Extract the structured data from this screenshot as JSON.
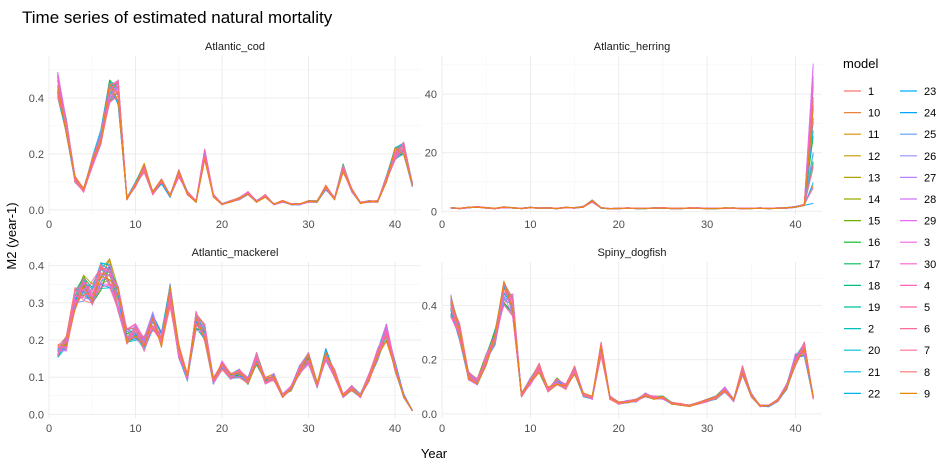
{
  "chart_data": {
    "type": "line",
    "title": "Time series of estimated natural mortality",
    "xlabel": "Year",
    "ylabel": "M2 (year-1)",
    "legend_title": "model",
    "legend_position": "right",
    "grid": true,
    "models": [
      "1",
      "10",
      "11",
      "12",
      "13",
      "14",
      "15",
      "16",
      "17",
      "18",
      "19",
      "2",
      "20",
      "21",
      "22",
      "23",
      "24",
      "25",
      "26",
      "27",
      "28",
      "29",
      "3",
      "30",
      "4",
      "5",
      "6",
      "7",
      "8",
      "9"
    ],
    "model_colors": [
      "#F8766D",
      "#EC8239",
      "#DB8E00",
      "#C79800",
      "#AFA100",
      "#93AA00",
      "#6BB100",
      "#00B81F",
      "#00BC59",
      "#00BF7D",
      "#00C19C",
      "#00C1B7",
      "#00BFCF",
      "#00BBE3",
      "#00B4F0",
      "#00ACFC",
      "#00A5FF",
      "#619CFF",
      "#9590FF",
      "#B983FF",
      "#D376FF",
      "#E76BF3",
      "#F564E3",
      "#FE61CF",
      "#FF62BC",
      "#FF65A9",
      "#FF6C95",
      "#FF7096",
      "#F8766D",
      "#E58700"
    ],
    "panels": [
      {
        "name": "Atlantic_cod",
        "xlim": [
          0,
          43
        ],
        "ylim": [
          -0.015,
          0.55
        ],
        "xticks": [
          0,
          10,
          20,
          30,
          40
        ],
        "xtick_labels": [
          "0",
          "10",
          "20",
          "30",
          "40"
        ],
        "yticks": [
          0,
          0.2,
          0.4
        ],
        "ytick_labels": [
          "0.0",
          "0.2",
          "0.4"
        ],
        "years": [
          1,
          2,
          3,
          4,
          5,
          6,
          7,
          8,
          9,
          10,
          11,
          12,
          13,
          14,
          15,
          16,
          17,
          18,
          19,
          20,
          21,
          22,
          23,
          24,
          25,
          26,
          27,
          28,
          29,
          30,
          31,
          32,
          33,
          34,
          35,
          36,
          37,
          38,
          39,
          40,
          41,
          42
        ],
        "base": [
          0.45,
          0.3,
          0.11,
          0.07,
          0.17,
          0.26,
          0.42,
          0.42,
          0.04,
          0.09,
          0.15,
          0.06,
          0.1,
          0.05,
          0.13,
          0.06,
          0.03,
          0.2,
          0.05,
          0.02,
          0.03,
          0.04,
          0.06,
          0.03,
          0.05,
          0.02,
          0.03,
          0.02,
          0.02,
          0.03,
          0.03,
          0.08,
          0.04,
          0.15,
          0.07,
          0.025,
          0.03,
          0.03,
          0.11,
          0.2,
          0.22,
          0.09
        ]
      },
      {
        "name": "Atlantic_herring",
        "xlim": [
          0,
          43
        ],
        "ylim": [
          -0.9,
          53
        ],
        "xticks": [
          0,
          10,
          20,
          30,
          40
        ],
        "xtick_labels": [
          "0",
          "10",
          "20",
          "30",
          "40"
        ],
        "yticks": [
          0,
          20,
          40
        ],
        "ytick_labels": [
          "0",
          "20",
          "40"
        ],
        "years": [
          1,
          2,
          3,
          4,
          5,
          6,
          7,
          8,
          9,
          10,
          11,
          12,
          13,
          14,
          15,
          16,
          17,
          18,
          19,
          20,
          21,
          22,
          23,
          24,
          25,
          26,
          27,
          28,
          29,
          30,
          31,
          32,
          33,
          34,
          35,
          36,
          37,
          38,
          39,
          40,
          41,
          42
        ],
        "base": [
          1.2,
          1.0,
          1.3,
          1.5,
          1.2,
          1.0,
          1.4,
          1.2,
          1.0,
          1.3,
          1.1,
          1.2,
          1.0,
          1.3,
          1.2,
          1.6,
          3.5,
          1.2,
          0.9,
          1.0,
          1.1,
          1.0,
          1.0,
          1.1,
          1.2,
          1.0,
          1.0,
          1.1,
          1.1,
          1.0,
          1.0,
          1.1,
          1.1,
          1.0,
          1.0,
          1.1,
          1.0,
          1.1,
          1.2,
          1.5,
          2.2,
          4.0
        ]
      },
      {
        "name": "Atlantic_mackerel",
        "xlim": [
          0,
          43
        ],
        "ylim": [
          -0.01,
          0.41
        ],
        "xticks": [
          0,
          10,
          20,
          30,
          40
        ],
        "xtick_labels": [
          "0",
          "10",
          "20",
          "30",
          "40"
        ],
        "yticks": [
          0,
          0.1,
          0.2,
          0.3,
          0.4
        ],
        "ytick_labels": [
          "0.0",
          "0.1",
          "0.2",
          "0.3",
          "0.4"
        ],
        "years": [
          1,
          2,
          3,
          4,
          5,
          6,
          7,
          8,
          9,
          10,
          11,
          12,
          13,
          14,
          15,
          16,
          17,
          18,
          19,
          20,
          21,
          22,
          23,
          24,
          25,
          26,
          27,
          28,
          29,
          30,
          31,
          32,
          33,
          34,
          35,
          36,
          37,
          38,
          39,
          40,
          41,
          42
        ],
        "base": [
          0.17,
          0.19,
          0.31,
          0.34,
          0.33,
          0.37,
          0.38,
          0.31,
          0.21,
          0.22,
          0.19,
          0.25,
          0.2,
          0.32,
          0.17,
          0.1,
          0.25,
          0.22,
          0.09,
          0.13,
          0.1,
          0.11,
          0.09,
          0.15,
          0.09,
          0.1,
          0.05,
          0.07,
          0.12,
          0.15,
          0.08,
          0.16,
          0.11,
          0.05,
          0.07,
          0.05,
          0.1,
          0.16,
          0.22,
          0.13,
          0.05,
          0.01
        ]
      },
      {
        "name": "Spiny_dogfish",
        "xlim": [
          0,
          43
        ],
        "ylim": [
          -0.015,
          0.56
        ],
        "xticks": [
          0,
          10,
          20,
          30,
          40
        ],
        "xtick_labels": [
          "0",
          "10",
          "20",
          "30",
          "40"
        ],
        "yticks": [
          0,
          0.2,
          0.4
        ],
        "ytick_labels": [
          "0.0",
          "0.2",
          "0.4"
        ],
        "years": [
          1,
          2,
          3,
          4,
          5,
          6,
          7,
          8,
          9,
          10,
          11,
          12,
          13,
          14,
          15,
          16,
          17,
          18,
          19,
          20,
          21,
          22,
          23,
          24,
          25,
          26,
          27,
          28,
          29,
          30,
          31,
          32,
          33,
          34,
          35,
          36,
          37,
          38,
          39,
          40,
          41,
          42
        ],
        "base": [
          0.4,
          0.3,
          0.14,
          0.12,
          0.2,
          0.28,
          0.45,
          0.4,
          0.07,
          0.12,
          0.17,
          0.09,
          0.12,
          0.1,
          0.16,
          0.07,
          0.06,
          0.24,
          0.06,
          0.04,
          0.045,
          0.05,
          0.07,
          0.06,
          0.06,
          0.04,
          0.035,
          0.03,
          0.04,
          0.05,
          0.06,
          0.09,
          0.05,
          0.16,
          0.07,
          0.03,
          0.03,
          0.05,
          0.1,
          0.2,
          0.24,
          0.06
        ]
      }
    ]
  }
}
